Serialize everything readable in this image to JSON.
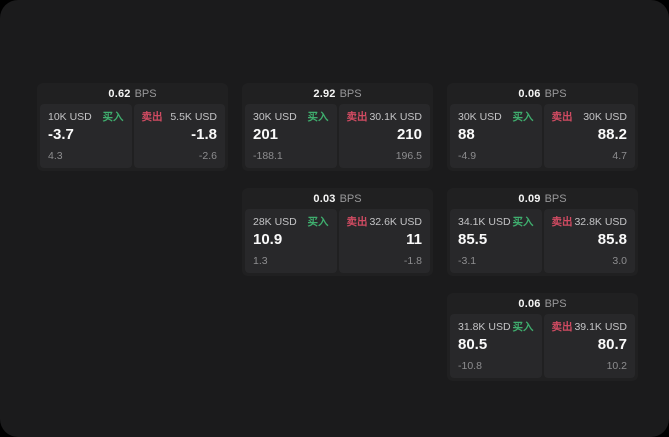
{
  "labels": {
    "bps_unit": "BPS",
    "buy": "买入",
    "sell": "卖出"
  },
  "colors": {
    "background": "#000000",
    "panel": "#1b1b1c",
    "card": "#202021",
    "tile": "#28282a",
    "buy_accent": "#3fae6e",
    "sell_accent": "#d14b62"
  },
  "cards": [
    {
      "row": 1,
      "col": 1,
      "bps": "0.62",
      "buy": {
        "notional": "10K USD",
        "price": "-3.7",
        "delta": "4.3"
      },
      "sell": {
        "notional": "5.5K USD",
        "price": "-1.8",
        "delta": "-2.6"
      }
    },
    {
      "row": 1,
      "col": 2,
      "bps": "2.92",
      "buy": {
        "notional": "30K USD",
        "price": "201",
        "delta": "-188.1"
      },
      "sell": {
        "notional": "30.1K USD",
        "price": "210",
        "delta": "196.5"
      }
    },
    {
      "row": 1,
      "col": 3,
      "bps": "0.06",
      "buy": {
        "notional": "30K USD",
        "price": "88",
        "delta": "-4.9"
      },
      "sell": {
        "notional": "30K USD",
        "price": "88.2",
        "delta": "4.7"
      }
    },
    {
      "row": 2,
      "col": 2,
      "bps": "0.03",
      "buy": {
        "notional": "28K USD",
        "price": "10.9",
        "delta": "1.3"
      },
      "sell": {
        "notional": "32.6K USD",
        "price": "11",
        "delta": "-1.8"
      }
    },
    {
      "row": 2,
      "col": 3,
      "bps": "0.09",
      "buy": {
        "notional": "34.1K USD",
        "price": "85.5",
        "delta": "-3.1"
      },
      "sell": {
        "notional": "32.8K USD",
        "price": "85.8",
        "delta": "3.0"
      }
    },
    {
      "row": 3,
      "col": 3,
      "bps": "0.06",
      "buy": {
        "notional": "31.8K USD",
        "price": "80.5",
        "delta": "-10.8"
      },
      "sell": {
        "notional": "39.1K USD",
        "price": "80.7",
        "delta": "10.2"
      }
    }
  ]
}
